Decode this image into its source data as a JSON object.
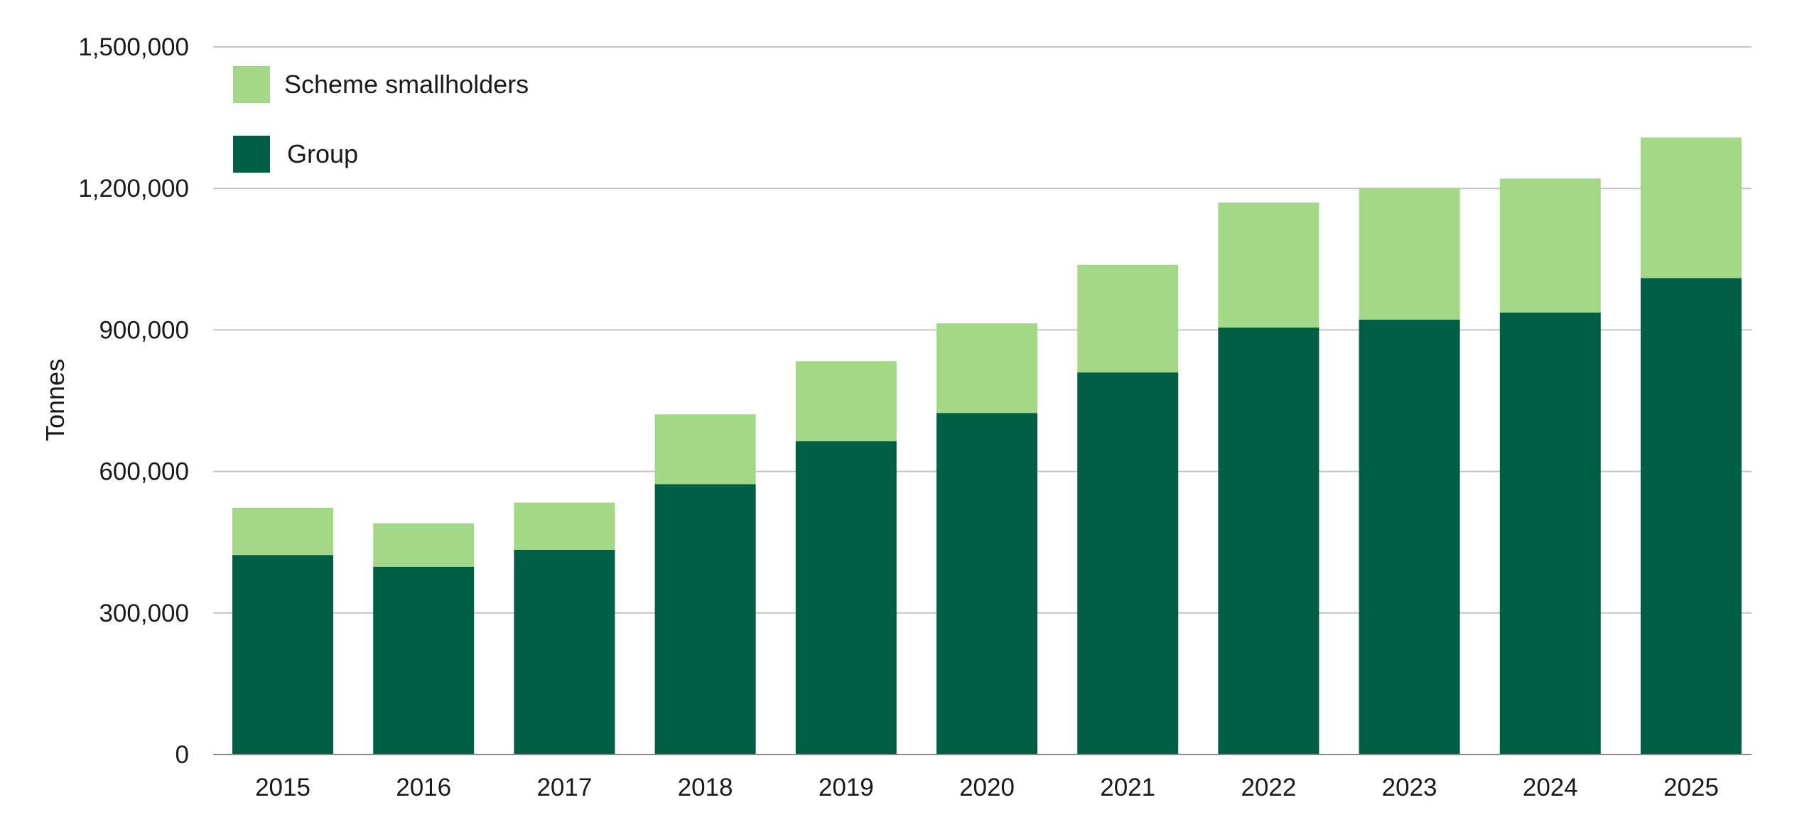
{
  "chart_data": {
    "type": "bar",
    "stacked": true,
    "categories": [
      "2015",
      "2016",
      "2017",
      "2018",
      "2019",
      "2020",
      "2021",
      "2022",
      "2023",
      "2024",
      "2025"
    ],
    "series": [
      {
        "name": "Group",
        "color": "#005e44",
        "values": [
          423000,
          398000,
          434000,
          573000,
          664000,
          724000,
          810000,
          905000,
          922000,
          937000,
          1010000
        ]
      },
      {
        "name": "Scheme smallholders",
        "color": "#a3d886",
        "values": [
          100000,
          92000,
          100000,
          148000,
          170000,
          190000,
          228000,
          265000,
          278000,
          284000,
          298000
        ]
      }
    ],
    "title": "",
    "xlabel": "",
    "ylabel": "Tonnes",
    "ylim": [
      0,
      1500000
    ],
    "yticks": [
      "0",
      "300,000",
      "600,000",
      "900,000",
      "1,200,000",
      "1,500,000"
    ],
    "ytick_values": [
      0,
      300000,
      600000,
      900000,
      1200000,
      1500000
    ],
    "grid": true,
    "legend_position": "top-left",
    "legend_order": [
      "Scheme smallholders",
      "Group"
    ],
    "colors": {
      "grid": "#c4c4c4",
      "axis": "#8a8a8a",
      "text": "#1a1a1a"
    }
  }
}
